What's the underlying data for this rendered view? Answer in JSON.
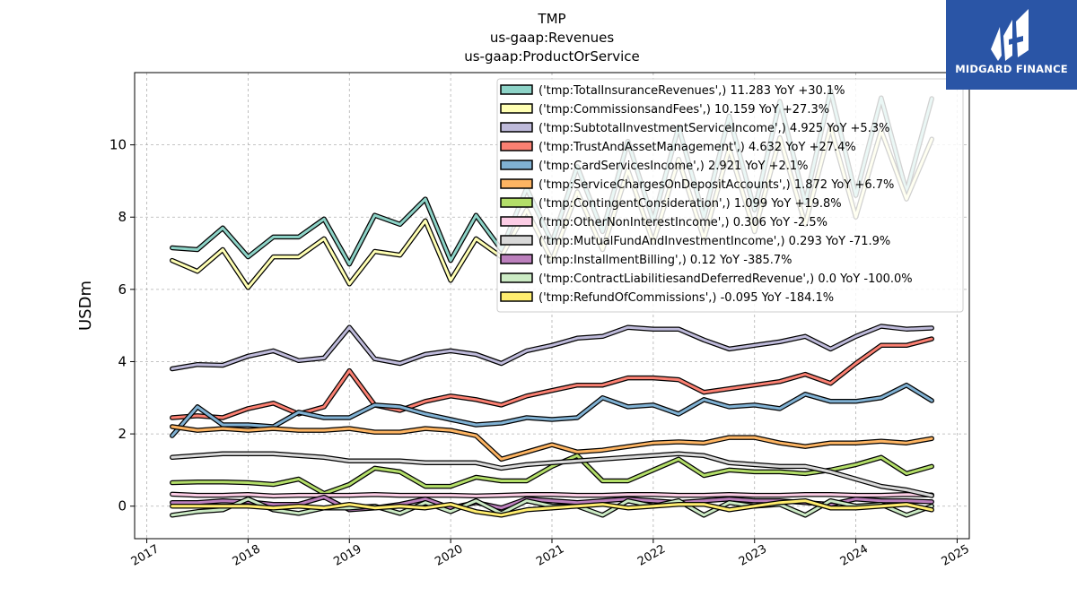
{
  "chart_data": {
    "type": "line",
    "title_lines": [
      "TMP",
      "us-gaap:Revenues",
      "us-gaap:ProductOrService"
    ],
    "ylabel": "USDm",
    "xlim": [
      2016.88,
      2025.12
    ],
    "ylim": [
      -0.9,
      12.0
    ],
    "x_ticks": [
      2017,
      2018,
      2019,
      2020,
      2021,
      2022,
      2023,
      2024,
      2025
    ],
    "y_ticks": [
      0,
      2,
      4,
      6,
      8,
      10
    ],
    "grid": true,
    "legend_position": "top-right",
    "x": [
      2017.25,
      2017.5,
      2017.75,
      2018.0,
      2018.25,
      2018.5,
      2018.75,
      2019.0,
      2019.25,
      2019.5,
      2019.75,
      2020.0,
      2020.25,
      2020.5,
      2020.75,
      2021.0,
      2021.25,
      2021.5,
      2021.75,
      2022.0,
      2022.25,
      2022.5,
      2022.75,
      2023.0,
      2023.25,
      2023.5,
      2023.75,
      2024.0,
      2024.25,
      2024.5,
      2024.75
    ],
    "series": [
      {
        "name": "('tmp:TotalInsuranceRevenues',) 11.283 YoY +30.1%",
        "color": "#8dd3c7",
        "values": [
          7.15,
          7.1,
          7.7,
          6.9,
          7.45,
          7.45,
          7.95,
          6.7,
          8.05,
          7.8,
          8.5,
          6.8,
          8.05,
          7.1,
          8.8,
          7.3,
          9.4,
          7.6,
          10.1,
          7.9,
          10.5,
          8.0,
          10.8,
          8.2,
          11.2,
          8.4,
          11.5,
          8.6,
          11.3,
          8.7,
          11.28
        ]
      },
      {
        "name": "('tmp:CommissionsandFees',) 10.159 YoY +27.3%",
        "color": "#ffffb3",
        "values": [
          6.8,
          6.5,
          7.1,
          6.05,
          6.9,
          6.9,
          7.4,
          6.15,
          7.05,
          6.95,
          7.9,
          6.25,
          7.4,
          6.9,
          8.2,
          6.8,
          8.7,
          7.1,
          9.3,
          7.3,
          9.6,
          7.4,
          9.9,
          7.6,
          10.2,
          7.8,
          10.5,
          8.0,
          10.4,
          8.5,
          10.16
        ]
      },
      {
        "name": "('tmp:SubtotalInvestmentServiceIncome',) 4.925 YoY +5.3%",
        "color": "#bebada",
        "values": [
          3.8,
          3.92,
          3.9,
          4.15,
          4.3,
          4.03,
          4.1,
          4.95,
          4.08,
          3.95,
          4.2,
          4.3,
          4.2,
          3.95,
          4.3,
          4.45,
          4.65,
          4.7,
          4.95,
          4.9,
          4.9,
          4.6,
          4.35,
          4.45,
          4.55,
          4.7,
          4.35,
          4.7,
          4.98,
          4.9,
          4.93
        ]
      },
      {
        "name": "('tmp:TrustAndAssetManagement',) 4.632 YoY +27.4%",
        "color": "#fb8072",
        "values": [
          2.45,
          2.5,
          2.45,
          2.7,
          2.85,
          2.55,
          2.75,
          3.75,
          2.8,
          2.65,
          2.9,
          3.05,
          2.95,
          2.8,
          3.05,
          3.2,
          3.35,
          3.35,
          3.55,
          3.55,
          3.5,
          3.15,
          3.25,
          3.35,
          3.45,
          3.65,
          3.4,
          3.95,
          4.45,
          4.45,
          4.63
        ]
      },
      {
        "name": "('tmp:CardServicesIncome',) 2.921 YoY +2.1%",
        "color": "#80b1d3",
        "values": [
          1.95,
          2.75,
          2.25,
          2.25,
          2.2,
          2.6,
          2.45,
          2.45,
          2.8,
          2.75,
          2.55,
          2.4,
          2.25,
          2.3,
          2.45,
          2.4,
          2.45,
          3.0,
          2.75,
          2.8,
          2.55,
          2.95,
          2.75,
          2.8,
          2.7,
          3.1,
          2.9,
          2.9,
          3.0,
          3.35,
          2.92
        ]
      },
      {
        "name": "('tmp:ServiceChargesOnDepositAccounts',) 1.872 YoY +6.7%",
        "color": "#fdb462",
        "values": [
          2.2,
          2.1,
          2.15,
          2.1,
          2.15,
          2.1,
          2.1,
          2.15,
          2.05,
          2.05,
          2.15,
          2.1,
          1.95,
          1.3,
          1.5,
          1.7,
          1.5,
          1.55,
          1.65,
          1.75,
          1.78,
          1.75,
          1.9,
          1.9,
          1.75,
          1.65,
          1.75,
          1.75,
          1.8,
          1.75,
          1.87
        ]
      },
      {
        "name": "('tmp:ContingentConsideration',) 1.099 YoY +19.8%",
        "color": "#b3de69",
        "values": [
          0.65,
          0.67,
          0.67,
          0.65,
          0.6,
          0.75,
          0.35,
          0.6,
          1.05,
          0.95,
          0.55,
          0.55,
          0.8,
          0.7,
          0.7,
          1.1,
          1.4,
          0.7,
          0.7,
          1.0,
          1.3,
          0.85,
          1.0,
          0.95,
          0.95,
          0.9,
          1.0,
          1.15,
          1.35,
          0.9,
          1.1
        ]
      },
      {
        "name": "('tmp:OtherNonInterestIncome',) 0.306 YoY -2.5%",
        "color": "#fccde5",
        "values": [
          0.33,
          0.3,
          0.3,
          0.32,
          0.28,
          0.3,
          0.3,
          0.3,
          0.32,
          0.3,
          0.3,
          0.3,
          0.28,
          0.3,
          0.32,
          0.32,
          0.3,
          0.3,
          0.32,
          0.32,
          0.3,
          0.3,
          0.32,
          0.3,
          0.3,
          0.32,
          0.32,
          0.3,
          0.3,
          0.32,
          0.31
        ]
      },
      {
        "name": "('tmp:MutualFundAndInvestmentIncome',) 0.293 YoY -71.9%",
        "color": "#d9d9d9",
        "values": [
          1.35,
          1.4,
          1.45,
          1.45,
          1.45,
          1.4,
          1.35,
          1.25,
          1.25,
          1.25,
          1.2,
          1.2,
          1.2,
          1.05,
          1.15,
          1.2,
          1.25,
          1.3,
          1.35,
          1.4,
          1.45,
          1.4,
          1.2,
          1.15,
          1.1,
          1.1,
          0.95,
          0.75,
          0.55,
          0.45,
          0.29
        ]
      },
      {
        "name": "('tmp:InstallmentBilling',) 0.12 YoY -385.7%",
        "color": "#bc80bd",
        "values": [
          0.1,
          0.1,
          0.15,
          0.12,
          0.05,
          0.05,
          0.25,
          -0.1,
          -0.05,
          0.05,
          0.2,
          -0.05,
          0.1,
          -0.05,
          0.2,
          0.15,
          0.1,
          0.15,
          0.2,
          0.15,
          0.1,
          0.15,
          0.2,
          0.15,
          0.15,
          0.1,
          0.05,
          0.2,
          0.15,
          0.15,
          0.12
        ]
      },
      {
        "name": "('tmp:ContractLiabilitiesandDeferredRevenue',) 0.0 YoY -100.0%",
        "color": "#ccebc5",
        "values": [
          -0.25,
          -0.15,
          -0.1,
          0.2,
          -0.1,
          -0.2,
          -0.05,
          -0.05,
          0.0,
          -0.2,
          0.1,
          -0.15,
          0.15,
          -0.2,
          0.15,
          0.0,
          0.0,
          -0.25,
          0.15,
          0.0,
          0.15,
          -0.25,
          0.1,
          0.0,
          0.05,
          -0.25,
          0.15,
          0.0,
          0.05,
          -0.25,
          0.0
        ]
      },
      {
        "name": "('tmp:RefundOfCommissions',) -0.095 YoY -184.1%",
        "color": "#ffed6f",
        "values": [
          0.0,
          0.0,
          0.0,
          0.0,
          -0.05,
          0.0,
          -0.05,
          0.05,
          -0.05,
          0.0,
          -0.05,
          0.05,
          -0.15,
          -0.25,
          -0.1,
          -0.05,
          0.0,
          0.05,
          -0.05,
          0.0,
          0.05,
          0.05,
          -0.1,
          0.0,
          0.1,
          0.15,
          -0.05,
          -0.05,
          0.0,
          0.05,
          -0.1
        ]
      }
    ]
  },
  "logo": {
    "text": "MIDGARD FINANCE"
  }
}
